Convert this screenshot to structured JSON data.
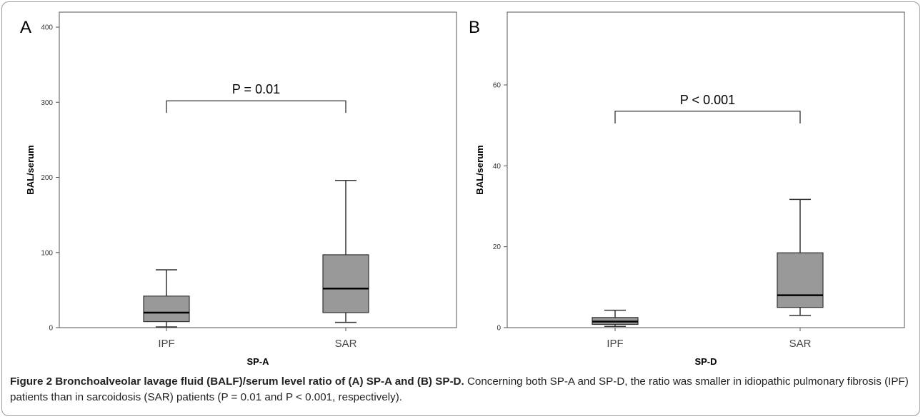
{
  "chart_data": [
    {
      "type": "box",
      "panel_label": "A",
      "xlabel": "SP-A",
      "ylabel": "BAL/serum",
      "ylim": [
        0,
        420
      ],
      "yticks": [
        0,
        100,
        200,
        300,
        400
      ],
      "categories": [
        "IPF",
        "SAR"
      ],
      "boxes": [
        {
          "category": "IPF",
          "whisker_low": 1,
          "q1": 8,
          "median": 20,
          "q3": 42,
          "whisker_high": 77
        },
        {
          "category": "SAR",
          "whisker_low": 7,
          "q1": 20,
          "median": 52,
          "q3": 97,
          "whisker_high": 196
        }
      ],
      "annotation": {
        "text": "P = 0.01",
        "y": 302
      },
      "box_color": "#999999",
      "grid": false
    },
    {
      "type": "box",
      "panel_label": "B",
      "xlabel": "SP-D",
      "ylabel": "BAL/serum",
      "ylim": [
        0,
        78
      ],
      "yticks": [
        0,
        20,
        40,
        60
      ],
      "categories": [
        "IPF",
        "SAR"
      ],
      "boxes": [
        {
          "category": "IPF",
          "whisker_low": 0.3,
          "q1": 0.8,
          "median": 1.5,
          "q3": 2.5,
          "whisker_high": 4.3
        },
        {
          "category": "SAR",
          "whisker_low": 3,
          "q1": 5,
          "median": 8,
          "q3": 18.5,
          "whisker_high": 31.7
        }
      ],
      "annotation": {
        "text": "P < 0.001",
        "y": 53.5
      },
      "box_color": "#999999",
      "grid": false
    }
  ],
  "caption": {
    "bold": "Figure 2 Bronchoalveolar lavage fluid (BALF)/serum level ratio of (A) SP-A and (B) SP-D.",
    "text": " Concerning both SP-A and SP-D, the ratio was smaller in idiopathic pulmonary fibrosis (IPF) patients than in sarcoidosis (SAR) patients (P = 0.01 and P < 0.001, respectively)."
  }
}
